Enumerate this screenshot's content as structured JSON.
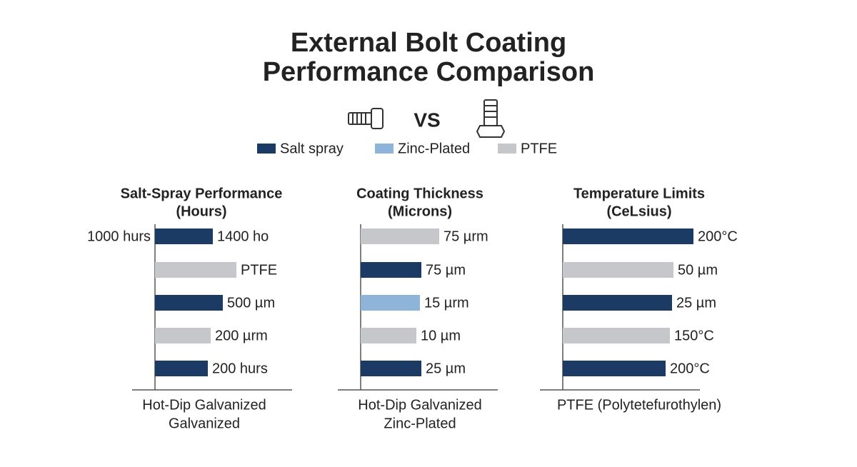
{
  "title": [
    "External Bolt Coating",
    "Performance Comparison"
  ],
  "vs": "VS",
  "legend": [
    {
      "name": "Salt spray",
      "color": "#1b3b64"
    },
    {
      "name": "Zinc-Plated",
      "color": "#8fb4d9"
    },
    {
      "name": "PTFE",
      "color": "#c5c7ca"
    }
  ],
  "chart_data": [
    {
      "type": "bar",
      "title": [
        "Salt-Spray Performance",
        "(Hours)"
      ],
      "categories": [
        "1000 hurs",
        null,
        null,
        null,
        null
      ],
      "values": [
        81,
        114,
        95,
        78,
        74
      ],
      "colors": [
        "#1b3b64",
        "#c5c7ca",
        "#1b3b64",
        "#c5c7ca",
        "#1b3b64"
      ],
      "annotations": [
        "1400 ho",
        "PTFE",
        "500 µm",
        "200 µrm",
        "200 hurs"
      ],
      "xlim": [
        0,
        200
      ],
      "xlabel": [
        "Hot-Dip Galvanized",
        "Galvanized"
      ]
    },
    {
      "type": "bar",
      "title": [
        "Coating Thickness",
        "(Microns)"
      ],
      "categories": [
        null,
        null,
        null,
        null,
        null
      ],
      "values": [
        110,
        85,
        83,
        78,
        85
      ],
      "colors": [
        "#c5c7ca",
        "#1b3b64",
        "#8fb4d9",
        "#c5c7ca",
        "#1b3b64"
      ],
      "annotations": [
        "75 µrm",
        "75 µm",
        "15 µrm",
        "10 µm",
        "25 µm"
      ],
      "xlim": [
        0,
        200
      ],
      "xlabel": [
        "Hot-Dip Galvanized",
        "Zinc-Plated"
      ]
    },
    {
      "type": "bar",
      "title": [
        "Temperature Limits",
        "(CeLsius)"
      ],
      "categories": [
        null,
        null,
        null,
        null,
        null
      ],
      "values": [
        183,
        155,
        153,
        150,
        144
      ],
      "colors": [
        "#1b3b64",
        "#c5c7ca",
        "#1b3b64",
        "#c5c7ca",
        "#1b3b64"
      ],
      "annotations": [
        "200°C",
        "50 µm",
        "25 µm",
        "150°C",
        "200°C"
      ],
      "xlim": [
        0,
        200
      ],
      "xlabel": [
        "PTFE (Polytetefurothylen)"
      ]
    }
  ]
}
